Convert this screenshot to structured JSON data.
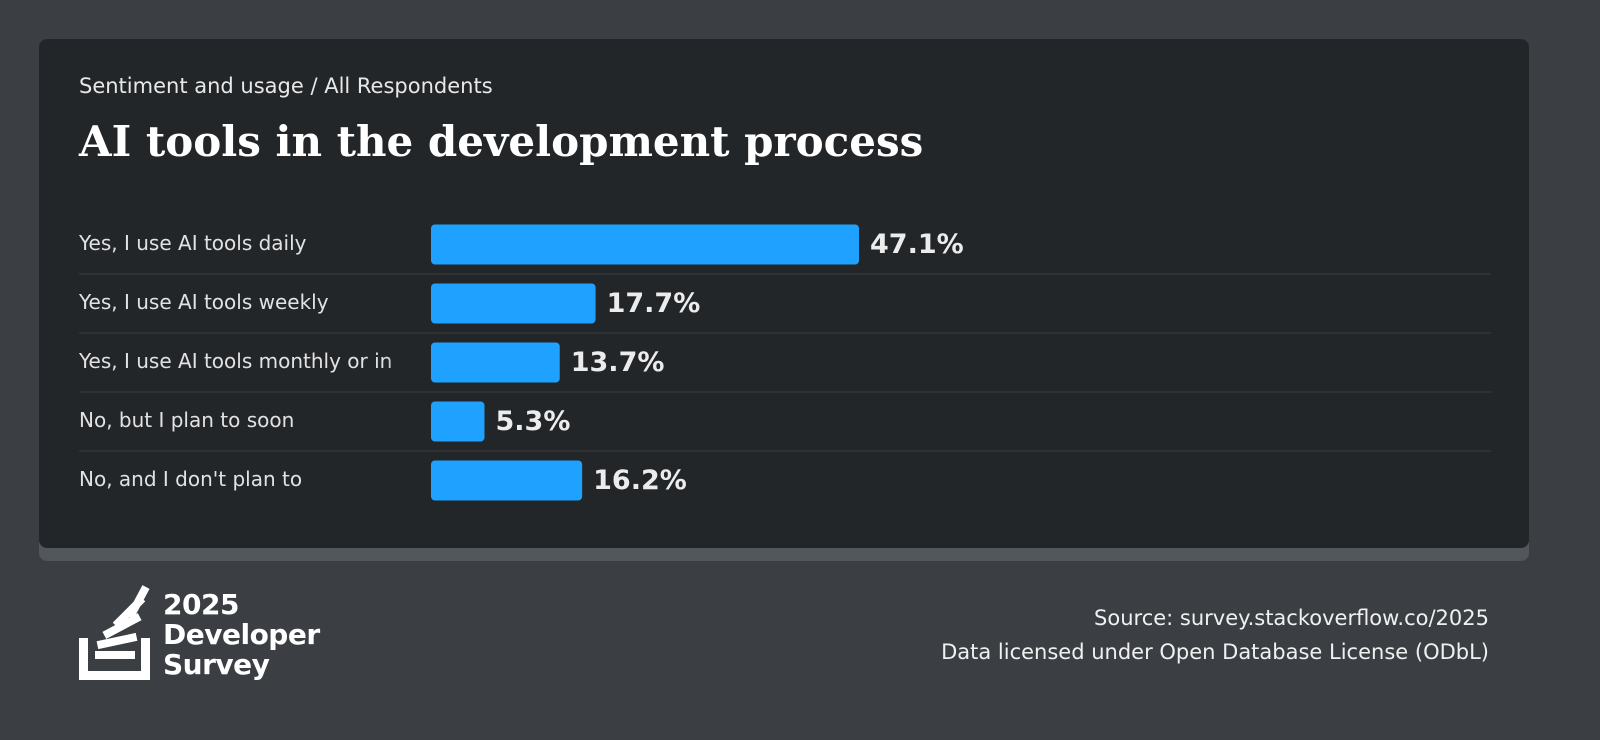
{
  "header": {
    "subtitle": "Sentiment and usage / All Respondents"
  },
  "chart_data": {
    "type": "bar",
    "orientation": "horizontal",
    "title": "AI tools in the development process",
    "categories": [
      "Yes, I use AI tools daily",
      "Yes, I use AI tools weekly",
      "Yes, I use AI tools monthly or in",
      "No, but I plan to soon",
      "No, and I don't plan to"
    ],
    "values": [
      47.1,
      17.7,
      13.7,
      5.3,
      16.2
    ],
    "value_labels": [
      "47.1%",
      "17.7%",
      "13.7%",
      "5.3%",
      "16.2%"
    ],
    "color": "#1ea1ff"
  },
  "footer": {
    "logo": [
      "2025",
      "Developer",
      "Survey"
    ],
    "source": "Source: survey.stackoverflow.co/2025",
    "license": "Data licensed under Open Database License (ODbL)"
  }
}
